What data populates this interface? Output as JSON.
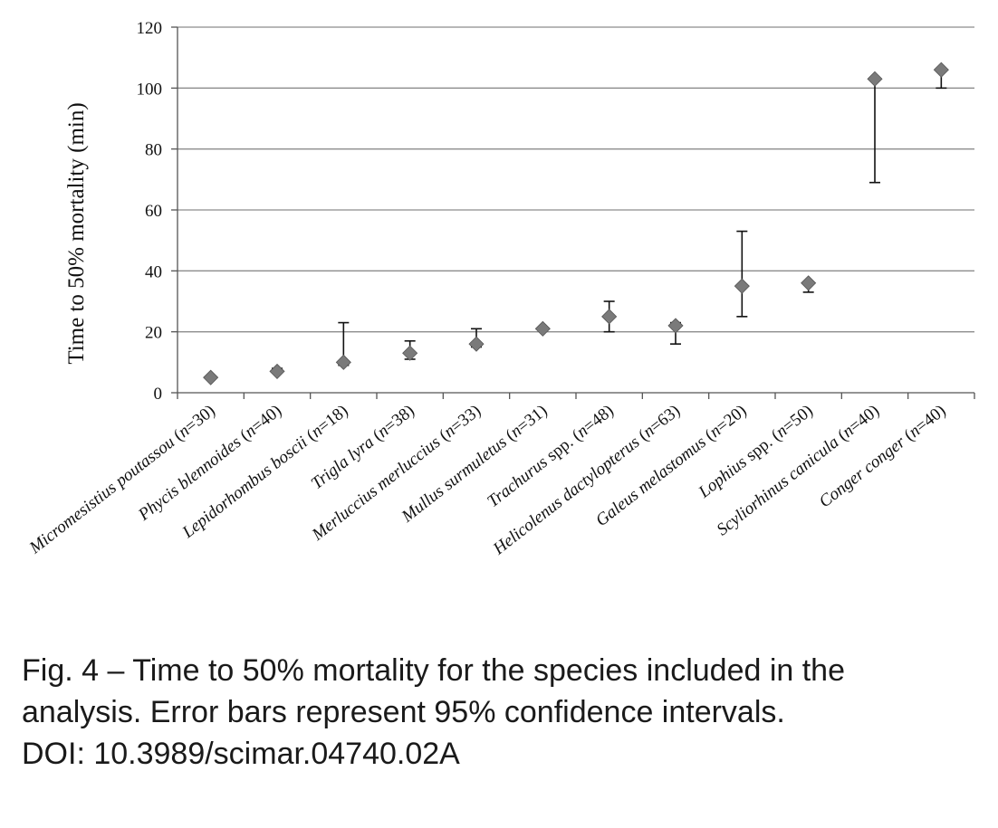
{
  "chart_data": {
    "type": "scatter",
    "ylabel": "Time to 50% mortality (min)",
    "ylim": [
      0,
      120
    ],
    "yticks": [
      "0",
      "20",
      "40",
      "60",
      "80",
      "100",
      "120"
    ],
    "grid": true,
    "categories": [
      {
        "italic": "Micromesistius poutassou",
        "rest": " (",
        "n": "n",
        "count": "=30)"
      },
      {
        "italic": "Phycis blennoides",
        "rest": " (",
        "n": "n",
        "count": "=40)"
      },
      {
        "italic": "Lepidorhombus boscii",
        "rest": " (",
        "n": "n",
        "count": "=18)"
      },
      {
        "italic": "Trigla lyra",
        "rest": " (",
        "n": "n",
        "count": "=38)"
      },
      {
        "italic": "Merluccius merluccius",
        "rest": " (",
        "n": "n",
        "count": "=33)"
      },
      {
        "italic": "Mullus surmuletus",
        "rest": " (",
        "n": "n",
        "count": "=31)"
      },
      {
        "italic": "Trachurus",
        "rest": " spp. (",
        "n": "n",
        "count": "=48)"
      },
      {
        "italic": "Helicolenus dactylopterus",
        "rest": " (",
        "n": "n",
        "count": "=63)"
      },
      {
        "italic": "Galeus melastomus",
        "rest": " (",
        "n": "n",
        "count": "=20)"
      },
      {
        "italic": "Lophius",
        "rest": " spp.  (",
        "n": "n",
        "count": "=50)"
      },
      {
        "italic": "Scyliorhinus canicula",
        "rest": " (",
        "n": "n",
        "count": "=40)"
      },
      {
        "italic": "Conger conger",
        "rest": "  (",
        "n": "n",
        "count": "=40)"
      }
    ],
    "series": [
      {
        "values": [
          5,
          7,
          10,
          13,
          16,
          21,
          25,
          22,
          35,
          36,
          103,
          106
        ],
        "ci_low": [
          5,
          7,
          9,
          11,
          15,
          21,
          20,
          16,
          25,
          33,
          69,
          100
        ],
        "ci_high": [
          5,
          8,
          23,
          17,
          21,
          21,
          30,
          23,
          53,
          36,
          103,
          106
        ]
      }
    ],
    "colors": {
      "marker": "#7a7a7a",
      "marker_edge": "#555555",
      "grid": "#8c8c8c",
      "axis": "#555555",
      "errorbar": "#111111"
    }
  },
  "caption": {
    "line1": "Fig. 4 – Time to 50% mortality for the species included in the",
    "line2": "analysis. Error bars represent 95% confidence intervals.",
    "line3": "DOI: 10.3989/scimar.04740.02A"
  }
}
